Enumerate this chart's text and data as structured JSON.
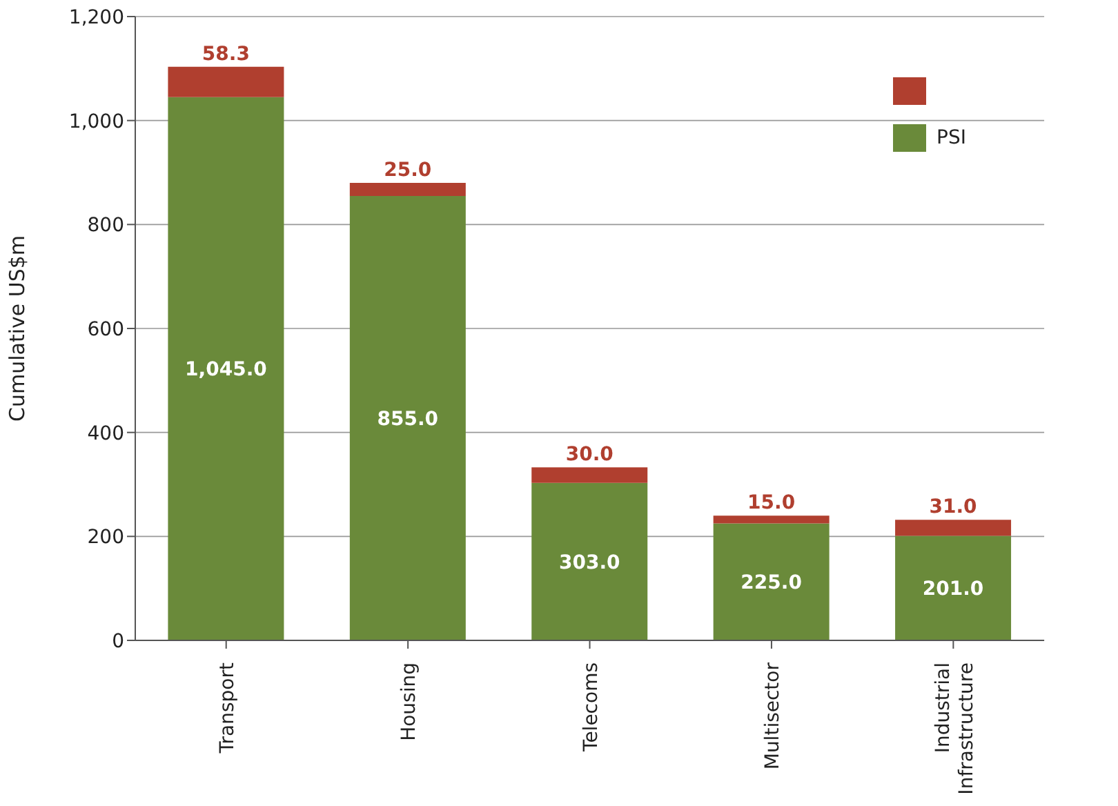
{
  "chart_data": {
    "type": "bar",
    "stacked": true,
    "ylabel": "Cumulative US$m",
    "categories": [
      "Transport",
      "Housing",
      "Telecoms",
      "Multisector",
      "Industrial Infrastructure"
    ],
    "series": [
      {
        "name": "PSI",
        "color": "#6a8a3a",
        "values": [
          1045,
          855,
          303,
          225,
          201
        ],
        "value_labels": [
          "1,045.0",
          "855.0",
          "303.0",
          "225.0",
          "201.0"
        ]
      },
      {
        "color": "#b03f2f",
        "values": [
          58.3,
          25,
          30,
          15,
          31
        ],
        "value_labels": [
          "58.3",
          "25.0",
          "30.0",
          "15.0",
          "31.0"
        ]
      }
    ],
    "ylim": [
      0,
      1200
    ],
    "yticks": [
      {
        "value": 0,
        "label": "0"
      },
      {
        "value": 200,
        "label": "200"
      },
      {
        "value": 400,
        "label": "400"
      },
      {
        "value": 600,
        "label": "600"
      },
      {
        "value": 800,
        "label": "800"
      },
      {
        "value": 1000,
        "label": "1,000"
      },
      {
        "value": 1200,
        "label": "1,200"
      }
    ],
    "grid": "y",
    "legend": "top right"
  }
}
